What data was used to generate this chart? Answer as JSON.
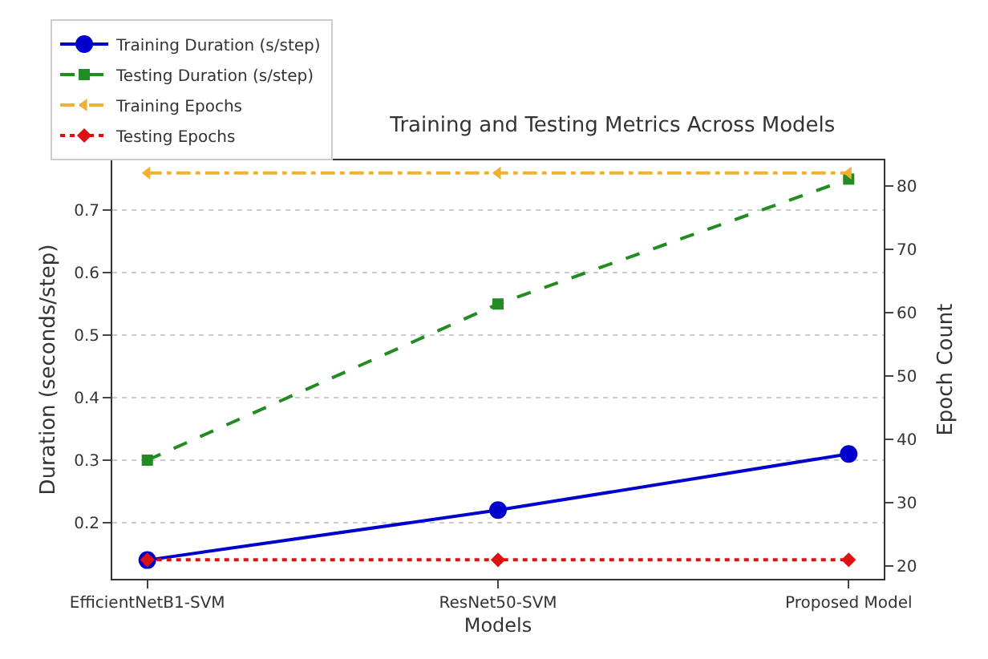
{
  "chart_data": {
    "type": "line",
    "title": "Training and Testing Metrics Across Models",
    "xlabel": "Models",
    "ylabel": "Duration (seconds/step)",
    "y2label": "Epoch Count",
    "categories": [
      "EfficientNetB1-SVM",
      "ResNet50-SVM",
      "Proposed Model"
    ],
    "series": [
      {
        "name": "Training Duration (s/step)",
        "color": "#0000cc",
        "values": [
          0.14,
          0.22,
          0.31
        ],
        "marker": "circle",
        "line_style": "solid"
      },
      {
        "name": "Testing Duration (s/step)",
        "color": "#228b22",
        "values": [
          0.3,
          0.55,
          0.75
        ],
        "marker": "square",
        "line_style": "dashed"
      },
      {
        "name": "Training Epochs",
        "color": "#f0b030",
        "values": [
          82,
          82,
          82
        ],
        "axis": "y2",
        "marker": "triangle",
        "line_style": "dashdot"
      },
      {
        "name": "Testing Epochs",
        "color": "#dd1111",
        "values": [
          21,
          21,
          21
        ],
        "axis": "y2",
        "marker": "diamond",
        "line_style": "dotted"
      }
    ],
    "ylim": [
      0.11,
      0.78
    ],
    "yticks": [
      0.2,
      0.3,
      0.4,
      0.5,
      0.6,
      0.7
    ],
    "y2lim": [
      18,
      84
    ],
    "y2ticks": [
      20,
      30,
      40,
      50,
      60,
      70,
      80
    ],
    "grid": "y",
    "legend": "top left"
  }
}
